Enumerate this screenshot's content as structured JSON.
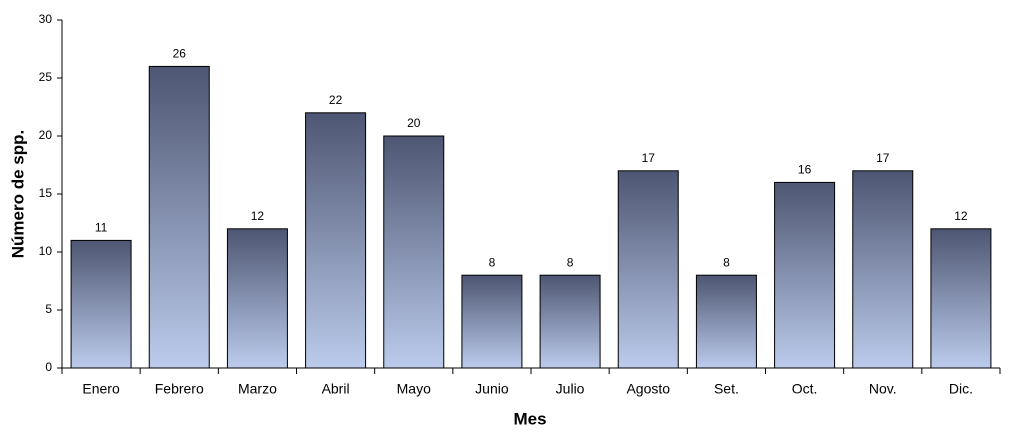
{
  "chart_data": {
    "type": "bar",
    "categories": [
      "Enero",
      "Febrero",
      "Marzo",
      "Abril",
      "Mayo",
      "Junio",
      "Julio",
      "Agosto",
      "Set.",
      "Oct.",
      "Nov.",
      "Dic."
    ],
    "values": [
      11,
      26,
      12,
      22,
      20,
      8,
      8,
      17,
      8,
      16,
      17,
      12
    ],
    "x_label": "Mes",
    "y_label": "Número de spp.",
    "colors": [
      "#4d5672",
      "#bccbec"
    ],
    "ylim": [
      0,
      30
    ],
    "yticks": [
      0,
      5,
      10,
      15,
      20,
      25,
      30
    ],
    "grid": false
  }
}
